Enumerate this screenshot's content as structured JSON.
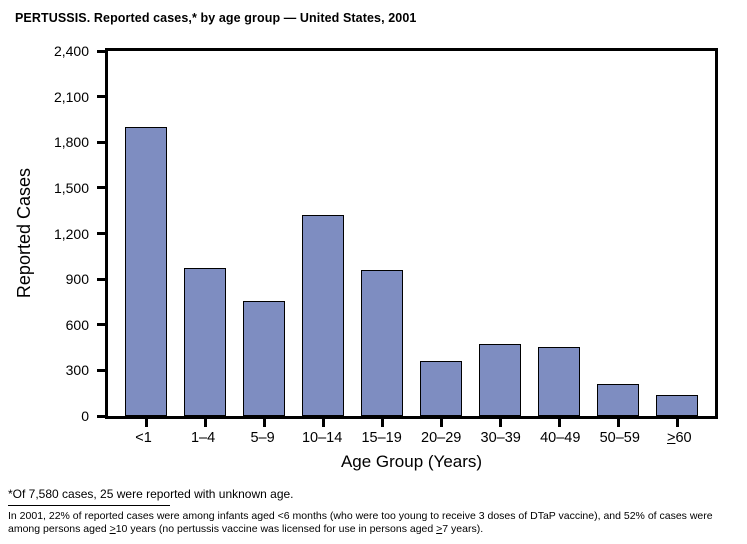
{
  "title": "PERTUSSIS. Reported cases,* by age group — United States, 2001",
  "chart_data": {
    "type": "bar",
    "title": "PERTUSSIS. Reported cases,* by age group — United States, 2001",
    "categories": [
      "<1",
      "1–4",
      "5–9",
      "10–14",
      "15–19",
      "20–29",
      "30–39",
      "40–49",
      "50–59",
      "≥60"
    ],
    "values": [
      1900,
      975,
      755,
      1325,
      960,
      365,
      475,
      455,
      210,
      135
    ],
    "xlabel": "Age Group (Years)",
    "ylabel": "Reported Cases",
    "ylim": [
      0,
      2400
    ],
    "ytick_step": 300,
    "yticks": [
      "0",
      "300",
      "600",
      "900",
      "1,200",
      "1,500",
      "1,800",
      "2,100",
      "2,400"
    ],
    "grid": false,
    "legend": "none",
    "bar_color": "#7E8DC1",
    "bar_border_color": "#000000",
    "axis_color": "#000000"
  },
  "footnotes": {
    "note1": "*Of 7,580 cases, 25 were reported with unknown age.",
    "note2": "In 2001, 22% of reported cases were among infants aged <6 months (who were too young to receive 3 doses of DTaP vaccine), and 52% of cases were among persons aged ≥10 years (no pertussis vaccine was licensed for use in persons aged ≥7 years)."
  }
}
